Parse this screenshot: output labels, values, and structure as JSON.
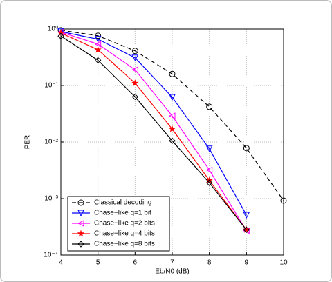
{
  "chart_data": {
    "type": "line",
    "log_y": true,
    "grid": true,
    "legend": "lower left",
    "y_label": "PER",
    "x_label": "Eb/N0 (dB)",
    "xlim": [
      4,
      10
    ],
    "xticks": [
      4,
      5,
      6,
      7,
      8,
      9,
      10
    ],
    "ylim": [
      0.0001,
      1
    ],
    "yticks": [
      {
        "value": 0.0001,
        "label": "10⁻⁴"
      },
      {
        "value": 0.001,
        "label": "10⁻³"
      },
      {
        "value": 0.01,
        "label": "10⁻²"
      },
      {
        "value": 0.1,
        "label": "10⁻¹"
      },
      {
        "value": 1,
        "label": "10⁰"
      }
    ],
    "series": [
      {
        "name": "Classical decoding",
        "color": "#000000",
        "dash": true,
        "marker": "circle",
        "x": [
          4,
          5,
          6,
          7,
          8,
          9,
          10
        ],
        "values": [
          0.95,
          0.76,
          0.41,
          0.16,
          0.042,
          0.0078,
          0.00092
        ]
      },
      {
        "name": "Chase−like q=1 bit",
        "color": "#0000ff",
        "dash": false,
        "marker": "triangle-down",
        "x": [
          4,
          5,
          6,
          7,
          8,
          9
        ],
        "values": [
          0.9,
          0.66,
          0.31,
          0.062,
          0.0076,
          0.00051
        ]
      },
      {
        "name": "Chase−like q=2 bits",
        "color": "#ff00ff",
        "dash": false,
        "marker": "triangle-left",
        "x": [
          4,
          5,
          6,
          7,
          8,
          9
        ],
        "values": [
          0.88,
          0.54,
          0.19,
          0.029,
          0.0032,
          0.00027
        ]
      },
      {
        "name": "Chase−like q=4 bits",
        "color": "#ff0000",
        "dash": false,
        "marker": "star",
        "x": [
          4,
          5,
          6,
          7,
          8,
          9
        ],
        "values": [
          0.85,
          0.43,
          0.11,
          0.017,
          0.0021,
          0.00028
        ]
      },
      {
        "name": "Chase−like q=8 bits",
        "color": "#000000",
        "dash": false,
        "marker": "diamond",
        "x": [
          4,
          5,
          6,
          7,
          8,
          9
        ],
        "values": [
          0.75,
          0.28,
          0.063,
          0.0105,
          0.0019,
          0.00028
        ]
      }
    ]
  }
}
